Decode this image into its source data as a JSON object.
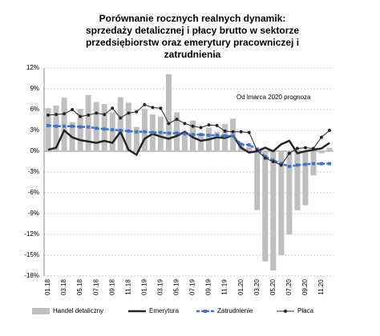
{
  "chart_data": {
    "type": "combo",
    "title": [
      "Porównanie rocznych realnych dynamik:",
      "sprzedaży detalicznej i płacy brutto w sektorze",
      "przedsiębiorstw oraz emerytury pracowniczej i",
      "zatrudnienia"
    ],
    "annotation": "Od lmarca 2020 prognoza",
    "categories": [
      "01.18",
      null,
      "03.18",
      null,
      "05.18",
      null,
      "07.18",
      null,
      "09.18",
      null,
      "11.18",
      null,
      "01.19",
      null,
      "03.19",
      null,
      "05.19",
      null,
      "07.19",
      null,
      "09.19",
      null,
      "11.19",
      null,
      "01.20",
      null,
      "03.20",
      null,
      "05.20",
      null,
      "07.20",
      null,
      "09.20",
      null,
      "11.20",
      null
    ],
    "ylim": [
      -18,
      12
    ],
    "yticks": [
      {
        "value": -18,
        "label": "-18%"
      },
      {
        "value": -15,
        "label": "-15%"
      },
      {
        "value": -12,
        "label": "-12%"
      },
      {
        "value": -9,
        "label": "-9%"
      },
      {
        "value": -6,
        "label": "-6%"
      },
      {
        "value": -3,
        "label": "-3%"
      },
      {
        "value": 0,
        "label": "0%"
      },
      {
        "value": 3,
        "label": "3%"
      },
      {
        "value": 6,
        "label": "6%"
      },
      {
        "value": 9,
        "label": "9%"
      },
      {
        "value": 12,
        "label": "12%"
      }
    ],
    "grid": true,
    "series": [
      {
        "name": "Handel detaliczny",
        "kind": "bar",
        "color": "#bfbfbf",
        "values": [
          6.2,
          6.6,
          7.7,
          4.2,
          6.1,
          8.1,
          7.1,
          6.8,
          5.6,
          7.8,
          7.0,
          3.5,
          6.1,
          5.3,
          5.0,
          11.1,
          5.6,
          2.3,
          4.4,
          2.6,
          3.4,
          2.8,
          3.9,
          4.7,
          0.8,
          0.6,
          -8.5,
          -15.9,
          -17.2,
          -15.0,
          -12.0,
          -8.5,
          -7.8,
          -3.5,
          -0.3,
          0.5
        ]
      },
      {
        "name": "Emerytura",
        "kind": "line",
        "color": "#262626",
        "values": [
          0.2,
          0.5,
          3.0,
          2.0,
          1.6,
          1.4,
          1.2,
          1.5,
          1.2,
          2.8,
          0.2,
          -0.5,
          1.8,
          2.5,
          2.1,
          1.8,
          2.2,
          2.8,
          2.0,
          1.5,
          1.7,
          2.0,
          1.9,
          2.3,
          0.5,
          -0.2,
          0.0,
          0.5,
          0.0,
          1.0,
          1.5,
          -0.3,
          0.0,
          0.2,
          0.4,
          1.2
        ]
      },
      {
        "name": "Zatrudnienie",
        "kind": "dashline",
        "color": "#4472c4",
        "values": [
          3.7,
          3.6,
          3.6,
          3.6,
          3.5,
          3.5,
          3.3,
          3.2,
          3.1,
          3.0,
          2.9,
          2.8,
          2.8,
          2.7,
          2.7,
          2.6,
          2.6,
          2.5,
          2.4,
          2.4,
          2.3,
          2.3,
          2.2,
          2.2,
          1.0,
          0.9,
          0.3,
          -0.8,
          -1.3,
          -1.8,
          -2.2,
          -2.0,
          -1.9,
          -1.8,
          -1.8,
          -1.8
        ]
      },
      {
        "name": "Płaca",
        "kind": "dotline",
        "color": "#262626",
        "values": [
          5.2,
          5.3,
          5.4,
          6.0,
          5.0,
          5.2,
          5.5,
          5.3,
          6.2,
          4.8,
          5.5,
          5.7,
          6.7,
          6.3,
          6.2,
          4.0,
          4.6,
          4.0,
          3.6,
          3.4,
          3.8,
          3.7,
          2.9,
          2.8,
          2.8,
          2.7,
          0.1,
          -1.0,
          -1.5,
          -2.0,
          -0.3,
          0.4,
          0.5,
          0.4,
          2.0,
          3.0
        ]
      }
    ]
  }
}
